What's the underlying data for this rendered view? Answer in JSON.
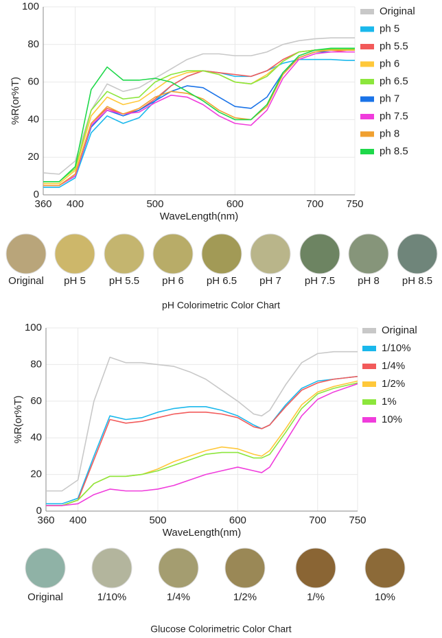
{
  "chart_data": [
    {
      "type": "line",
      "ylabel": "%R(or%T)",
      "xlabel": "WaveLength(nm)",
      "x": [
        360,
        380,
        400,
        420,
        440,
        460,
        480,
        500,
        520,
        540,
        560,
        580,
        600,
        620,
        640,
        660,
        680,
        700,
        720,
        740,
        750
      ],
      "xlim": [
        360,
        750
      ],
      "xticks": [
        360,
        400,
        500,
        600,
        700,
        750
      ],
      "ylim": [
        0,
        100
      ],
      "yticks": [
        0,
        20,
        40,
        60,
        80,
        100
      ],
      "grid": true,
      "legend": "right",
      "series": [
        {
          "name": "Original",
          "color": "#c8c8c8",
          "values": [
            11.7,
            11,
            18,
            45,
            59,
            55,
            57,
            62,
            67,
            72,
            75,
            75,
            74,
            74,
            76,
            80,
            82,
            83,
            83.5,
            83.5,
            83.5
          ]
        },
        {
          "name": "ph 5",
          "color": "#1ab8ec",
          "values": [
            4,
            4,
            9,
            33,
            42,
            38,
            41,
            50,
            58,
            63,
            66,
            65,
            63,
            63,
            66,
            70,
            72,
            72,
            72,
            71.5,
            71.5
          ]
        },
        {
          "name": "ph 5.5",
          "color": "#f25a5a",
          "values": [
            5,
            5,
            11,
            38,
            46,
            43,
            45,
            51,
            58,
            63,
            66,
            65,
            64,
            63,
            66,
            72,
            76,
            77,
            77,
            76,
            76
          ]
        },
        {
          "name": "ph 6",
          "color": "#ffc83a",
          "values": [
            6,
            6,
            13,
            42,
            52,
            48,
            50,
            56,
            62,
            65,
            66,
            64,
            60,
            59,
            64,
            71,
            76,
            77,
            77,
            77,
            77
          ]
        },
        {
          "name": "ph 6.5",
          "color": "#8ce63c",
          "values": [
            7,
            7,
            14,
            45,
            55,
            51,
            52,
            60,
            64,
            66,
            66,
            64,
            60,
            59,
            63,
            71,
            76,
            77,
            77.5,
            77.5,
            77.5
          ]
        },
        {
          "name": "ph 7",
          "color": "#1a73e8",
          "values": [
            5,
            5,
            10,
            36,
            45,
            42,
            45,
            50,
            55,
            58,
            57,
            52,
            47,
            46,
            52,
            65,
            73,
            76,
            76,
            76,
            76
          ]
        },
        {
          "name": "ph 7.5",
          "color": "#f03cdc",
          "values": [
            5,
            5,
            10,
            37,
            45,
            43,
            44,
            49,
            53,
            52,
            48,
            42,
            38,
            37,
            45,
            62,
            72,
            75,
            76,
            76,
            76
          ]
        },
        {
          "name": "ph 8",
          "color": "#f0a030",
          "values": [
            5,
            5,
            11,
            38,
            47,
            43,
            46,
            52,
            55,
            54,
            51,
            45,
            41,
            40,
            47,
            64,
            73,
            76,
            77,
            77,
            77
          ]
        },
        {
          "name": "ph 8.5",
          "color": "#1ed84a",
          "values": [
            7,
            7,
            15,
            56,
            68,
            61,
            61,
            62,
            60,
            55,
            50,
            44,
            40,
            40,
            48,
            65,
            74,
            77,
            78,
            78,
            78
          ]
        }
      ]
    },
    {
      "type": "line",
      "ylabel": "%R(or%T)",
      "xlabel": "WaveLength(nm)",
      "x": [
        360,
        380,
        400,
        420,
        440,
        460,
        480,
        500,
        520,
        540,
        560,
        580,
        600,
        620,
        630,
        640,
        660,
        680,
        700,
        720,
        740,
        750
      ],
      "xlim": [
        360,
        750
      ],
      "xticks": [
        360,
        400,
        500,
        600,
        700,
        750
      ],
      "ylim": [
        0,
        100
      ],
      "yticks": [
        0,
        20,
        40,
        60,
        80,
        100
      ],
      "grid": true,
      "legend": "right",
      "series": [
        {
          "name": "Original",
          "color": "#c8c8c8",
          "values": [
            11,
            11,
            17,
            60,
            84,
            81,
            81,
            80,
            79,
            76,
            72,
            66,
            60,
            53,
            52,
            55,
            69,
            81,
            86,
            87,
            87,
            87
          ]
        },
        {
          "name": "1/10%",
          "color": "#1ab8ec",
          "values": [
            4,
            4,
            7,
            30,
            52,
            50,
            51,
            54,
            56,
            57,
            57,
            55,
            52,
            47,
            45,
            47,
            58,
            67,
            71,
            72,
            73,
            73.5
          ]
        },
        {
          "name": "1/4%",
          "color": "#f25a5a",
          "values": [
            3,
            3,
            6,
            28,
            50,
            48,
            49,
            51,
            53,
            54,
            54,
            53,
            51,
            46,
            45,
            47,
            57,
            66,
            70,
            72,
            73,
            73.5
          ]
        },
        {
          "name": "1/2%",
          "color": "#ffc83a",
          "values": [
            3,
            3,
            6,
            15,
            19,
            19,
            20,
            23,
            27,
            30,
            33,
            35,
            34,
            31,
            30,
            33,
            45,
            58,
            65,
            68,
            70,
            71
          ]
        },
        {
          "name": "1%",
          "color": "#8ce63c",
          "values": [
            3,
            3,
            6,
            15,
            19,
            19,
            20,
            22,
            25,
            28,
            31,
            32,
            32,
            29,
            29,
            31,
            43,
            56,
            64,
            67,
            69,
            70
          ]
        },
        {
          "name": "10%",
          "color": "#f03cdc",
          "values": [
            3,
            3,
            4,
            9,
            12,
            11,
            11,
            12,
            14,
            17,
            20,
            22,
            24,
            22,
            21,
            24,
            38,
            52,
            61,
            65,
            68,
            69.5
          ]
        }
      ]
    }
  ],
  "swatch_rows": [
    {
      "caption": "pH Colorimetric Color Chart",
      "swatches": [
        {
          "label": "Original",
          "color": "#b9a57a"
        },
        {
          "label": "pH 5",
          "color": "#cdb76a"
        },
        {
          "label": "pH 5.5",
          "color": "#c4b56f"
        },
        {
          "label": "pH 6",
          "color": "#b8ac68"
        },
        {
          "label": "pH 6.5",
          "color": "#a29a56"
        },
        {
          "label": "pH 7",
          "color": "#b9b58a"
        },
        {
          "label": "pH 7.5",
          "color": "#6d8462"
        },
        {
          "label": "pH 8",
          "color": "#86957a"
        },
        {
          "label": "pH 8.5",
          "color": "#6f857a"
        }
      ]
    },
    {
      "caption": "Glucose Colorimetric Color Chart",
      "swatches": [
        {
          "label": "Original",
          "color": "#8fb2a6"
        },
        {
          "label": "1/10%",
          "color": "#b3b59d"
        },
        {
          "label": "1/4%",
          "color": "#a49d70"
        },
        {
          "label": "1/2%",
          "color": "#9a8856"
        },
        {
          "label": "1/%",
          "color": "#8a6534"
        },
        {
          "label": "10%",
          "color": "#8c6a38"
        }
      ]
    }
  ]
}
